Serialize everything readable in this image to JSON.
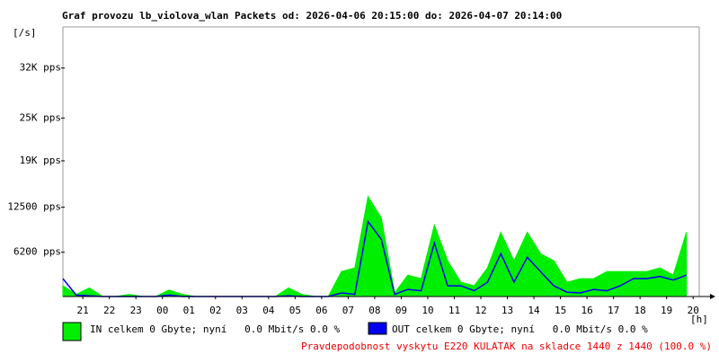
{
  "chart_data": {
    "type": "area",
    "title": "Graf provozu lb_violova_wlan Packets od: 2026-04-06 20:15:00 do: 2026-04-07 20:14:00",
    "y_label": "[/s]",
    "x_label": "[h]",
    "ylim": [
      0,
      37500
    ],
    "yticks": [
      {
        "value": 6200,
        "label": "6200 pps"
      },
      {
        "value": 12500,
        "label": "12500 pps"
      },
      {
        "value": 19000,
        "label": "19K pps"
      },
      {
        "value": 25000,
        "label": "25K pps"
      },
      {
        "value": 32000,
        "label": "32K pps"
      }
    ],
    "xlim": [
      20.25,
      44.23
    ],
    "xticks": [
      {
        "value": 21,
        "label": "21"
      },
      {
        "value": 22,
        "label": "22"
      },
      {
        "value": 23,
        "label": "23"
      },
      {
        "value": 24,
        "label": "00"
      },
      {
        "value": 25,
        "label": "01"
      },
      {
        "value": 26,
        "label": "02"
      },
      {
        "value": 27,
        "label": "03"
      },
      {
        "value": 28,
        "label": "04"
      },
      {
        "value": 29,
        "label": "05"
      },
      {
        "value": 30,
        "label": "06"
      },
      {
        "value": 31,
        "label": "07"
      },
      {
        "value": 32,
        "label": "08"
      },
      {
        "value": 33,
        "label": "09"
      },
      {
        "value": 34,
        "label": "10"
      },
      {
        "value": 35,
        "label": "11"
      },
      {
        "value": 36,
        "label": "12"
      },
      {
        "value": 37,
        "label": "13"
      },
      {
        "value": 38,
        "label": "14"
      },
      {
        "value": 39,
        "label": "15"
      },
      {
        "value": 40,
        "label": "16"
      },
      {
        "value": 41,
        "label": "17"
      },
      {
        "value": 42,
        "label": "18"
      },
      {
        "value": 43,
        "label": "19"
      },
      {
        "value": 44,
        "label": "20"
      }
    ],
    "x": [
      20.25,
      20.75,
      21.25,
      21.75,
      22.25,
      22.75,
      23.25,
      23.75,
      24.25,
      24.75,
      25.25,
      25.75,
      26.25,
      26.75,
      27.25,
      27.75,
      28.25,
      28.75,
      29.25,
      29.75,
      30.25,
      30.75,
      31.25,
      31.75,
      32.25,
      32.75,
      33.25,
      33.75,
      34.25,
      34.75,
      35.25,
      35.75,
      36.25,
      36.75,
      37.25,
      37.75,
      38.25,
      38.75,
      39.25,
      39.75,
      40.25,
      40.75,
      41.25,
      41.75,
      42.25,
      42.75,
      43.25,
      43.75
    ],
    "series": [
      {
        "name": "IN celkem 0 Gbyte; nyní   0.0 Mbit/s 0.0 %",
        "color": "#00ee00",
        "values": [
          1500,
          300,
          1200,
          0,
          0,
          300,
          0,
          0,
          900,
          300,
          0,
          0,
          0,
          0,
          0,
          0,
          0,
          1200,
          300,
          0,
          0,
          3500,
          4000,
          14000,
          11000,
          500,
          3000,
          2500,
          10000,
          5000,
          2000,
          1500,
          4000,
          9000,
          5000,
          9000,
          6000,
          5000,
          2000,
          2500,
          2500,
          3500,
          3500,
          3500,
          3500,
          4000,
          3000,
          9000
        ]
      },
      {
        "name": "OUT celkem 0 Gbyte; nyní   0.0 Mbit/s 0.0 %",
        "color": "#0000ee",
        "values": [
          2500,
          200,
          100,
          0,
          0,
          0,
          0,
          0,
          200,
          0,
          0,
          0,
          0,
          0,
          0,
          0,
          0,
          100,
          0,
          0,
          0,
          500,
          300,
          10500,
          8000,
          300,
          1000,
          800,
          7500,
          1500,
          1500,
          800,
          2000,
          6000,
          2000,
          5500,
          3500,
          1500,
          600,
          500,
          1000,
          800,
          1500,
          2500,
          2500,
          2800,
          2300,
          3000
        ]
      }
    ],
    "footer": "Pravdepodobnost vyskytu E220 KULATAK na skladce 1440 z 1440 (100.0 %)"
  }
}
